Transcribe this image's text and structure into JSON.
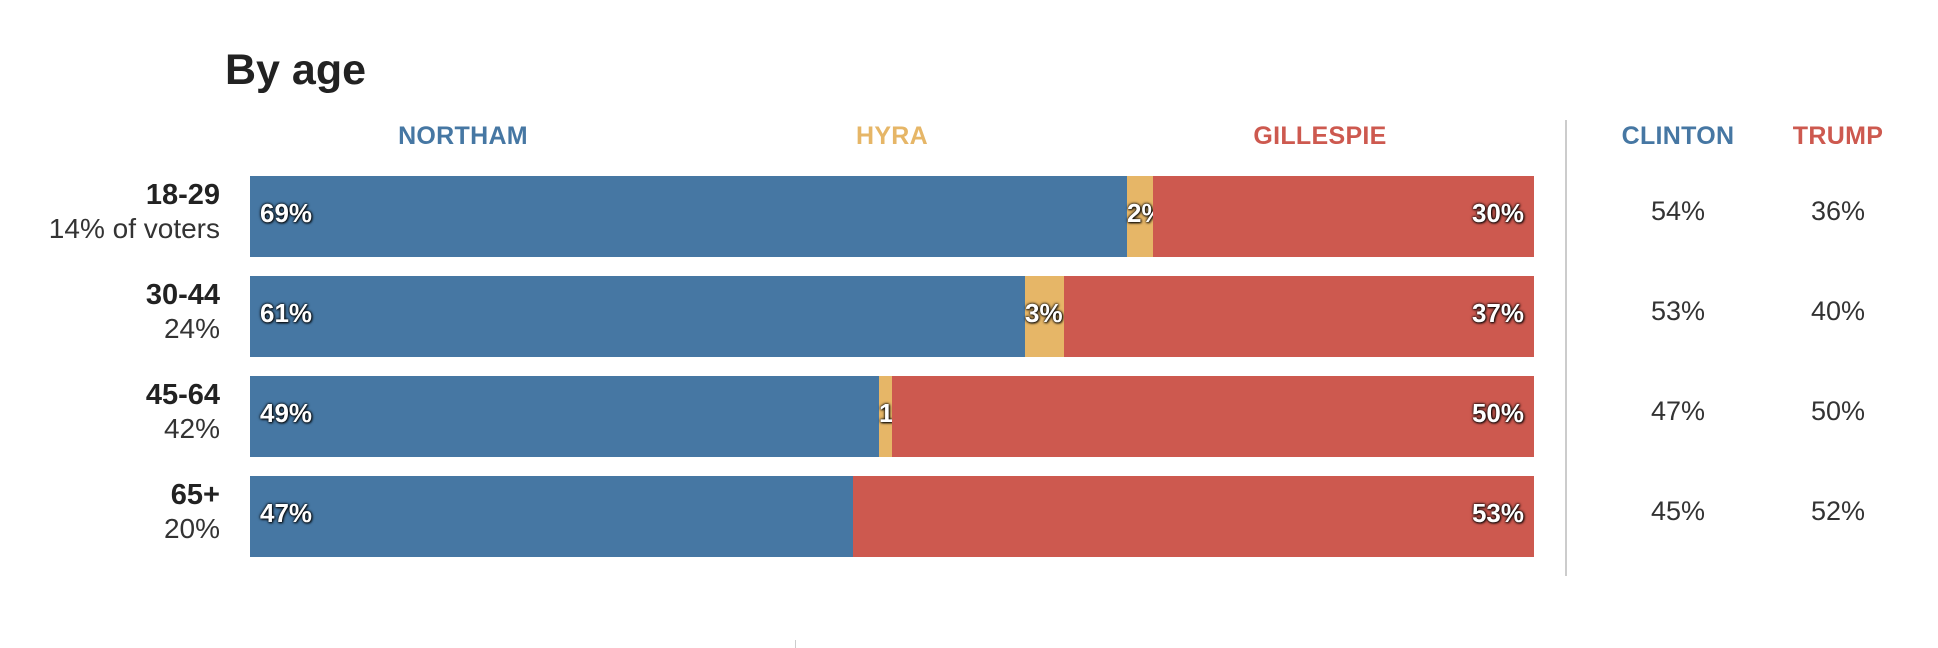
{
  "chart_data": {
    "type": "bar",
    "stacked": true,
    "orientation": "horizontal",
    "title": "By age",
    "categories": [
      "18-29",
      "30-44",
      "45-64",
      "65+"
    ],
    "voter_share": [
      "14% of voters",
      "24%",
      "42%",
      "20%"
    ],
    "series": [
      {
        "name": "NORTHAM",
        "color": "#4677a3",
        "values": [
          69,
          61,
          49,
          47
        ],
        "labels": [
          "69%",
          "61%",
          "49%",
          "47%"
        ]
      },
      {
        "name": "HYRA",
        "color": "#e6b667",
        "values": [
          2,
          3,
          1,
          0
        ],
        "labels": [
          "2%",
          "3%",
          "1%",
          ""
        ]
      },
      {
        "name": "GILLESPIE",
        "color": "#cd594f",
        "values": [
          30,
          37,
          50,
          53
        ],
        "labels": [
          "30%",
          "37%",
          "50%",
          "53%"
        ]
      }
    ],
    "comparison": {
      "columns": [
        {
          "name": "CLINTON",
          "color": "#4677a3",
          "values": [
            "54%",
            "53%",
            "47%",
            "45%"
          ]
        },
        {
          "name": "TRUMP",
          "color": "#cd594f",
          "values": [
            "36%",
            "40%",
            "50%",
            "52%"
          ]
        }
      ]
    },
    "xlim": [
      0,
      100
    ]
  }
}
